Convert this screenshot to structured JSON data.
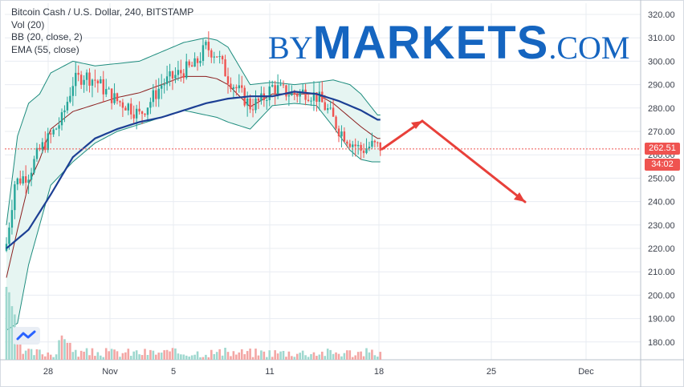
{
  "legend": {
    "symbol": "Bitcoin Cash / U.S. Dollar, 240, BITSTAMP",
    "vol": "Vol (20)",
    "bb": "BB (20, close, 2)",
    "ema": "EMA (55, close)"
  },
  "watermark": {
    "by": "BY",
    "markets": "MARKETS",
    "com": ".COM"
  },
  "price_tag": {
    "price": "262.51",
    "countdown": "34:02"
  },
  "colors": {
    "up": "#26a69a",
    "down": "#ef5350",
    "ema": "#1c3f94",
    "bb_band": "#1e8c7e",
    "bb_mid": "#8b1e1e",
    "bb_fill": "#e6f5f2",
    "arrow": "#e8403a",
    "grid": "#e8ecf2",
    "price_line": "#ef5350"
  },
  "chart_data": {
    "type": "candlestick",
    "title": "Bitcoin Cash / U.S. Dollar, 240, BITSTAMP",
    "ylim": [
      171,
      323
    ],
    "y_ticks": [
      180,
      190,
      200,
      210,
      220,
      230,
      240,
      250,
      260,
      270,
      280,
      290,
      300,
      310,
      320
    ],
    "x_ticks": [
      "28",
      "Nov",
      "5",
      "11",
      "18",
      "25",
      "Dec"
    ],
    "last_price": 262.51,
    "price_close_approx": [
      [
        0,
        222
      ],
      [
        3,
        248
      ],
      [
        8,
        252
      ],
      [
        12,
        262
      ],
      [
        16,
        268
      ],
      [
        20,
        275
      ],
      [
        24,
        291
      ],
      [
        28,
        294
      ],
      [
        32,
        292
      ],
      [
        36,
        287
      ],
      [
        40,
        283
      ],
      [
        44,
        281
      ],
      [
        48,
        277
      ],
      [
        52,
        283
      ],
      [
        56,
        290
      ],
      [
        60,
        293
      ],
      [
        64,
        296
      ],
      [
        68,
        298
      ],
      [
        72,
        306
      ],
      [
        76,
        303
      ],
      [
        80,
        293
      ],
      [
        84,
        287
      ],
      [
        88,
        281
      ],
      [
        92,
        283
      ],
      [
        96,
        289
      ],
      [
        100,
        287
      ],
      [
        104,
        286
      ],
      [
        108,
        287
      ],
      [
        112,
        285
      ],
      [
        116,
        279
      ],
      [
        120,
        271
      ],
      [
        124,
        266
      ],
      [
        128,
        262
      ],
      [
        132,
        264
      ],
      [
        136,
        263
      ]
    ],
    "ema_55_approx": [
      [
        0,
        220
      ],
      [
        8,
        228
      ],
      [
        16,
        243
      ],
      [
        24,
        259
      ],
      [
        32,
        267
      ],
      [
        40,
        271
      ],
      [
        48,
        274
      ],
      [
        56,
        276
      ],
      [
        64,
        279
      ],
      [
        72,
        282
      ],
      [
        80,
        284
      ],
      [
        88,
        285
      ],
      [
        96,
        285
      ],
      [
        104,
        287
      ],
      [
        112,
        286
      ],
      [
        120,
        283
      ],
      [
        128,
        279
      ],
      [
        134,
        275
      ]
    ],
    "bb_upper_approx": [
      [
        0,
        230
      ],
      [
        4,
        268
      ],
      [
        8,
        282
      ],
      [
        12,
        286
      ],
      [
        16,
        295
      ],
      [
        24,
        300
      ],
      [
        32,
        298
      ],
      [
        40,
        299
      ],
      [
        48,
        300
      ],
      [
        56,
        304
      ],
      [
        64,
        308
      ],
      [
        72,
        310
      ],
      [
        76,
        309
      ],
      [
        80,
        306
      ],
      [
        88,
        290
      ],
      [
        96,
        291
      ],
      [
        104,
        290
      ],
      [
        112,
        291
      ],
      [
        118,
        292
      ],
      [
        124,
        290
      ],
      [
        128,
        286
      ],
      [
        132,
        280
      ],
      [
        134,
        277
      ]
    ],
    "bb_lower_approx": [
      [
        0,
        185
      ],
      [
        4,
        188
      ],
      [
        8,
        213
      ],
      [
        12,
        230
      ],
      [
        16,
        247
      ],
      [
        24,
        257
      ],
      [
        32,
        265
      ],
      [
        40,
        270
      ],
      [
        48,
        273
      ],
      [
        56,
        276
      ],
      [
        64,
        279
      ],
      [
        72,
        277
      ],
      [
        76,
        276
      ],
      [
        80,
        274
      ],
      [
        88,
        271
      ],
      [
        96,
        281
      ],
      [
        104,
        282
      ],
      [
        112,
        281
      ],
      [
        118,
        272
      ],
      [
        124,
        262
      ],
      [
        128,
        258
      ],
      [
        132,
        257
      ],
      [
        134,
        257
      ]
    ],
    "forecast_arrow": {
      "peak": [
        526,
        151
      ],
      "end": [
        654,
        252
      ]
    }
  }
}
